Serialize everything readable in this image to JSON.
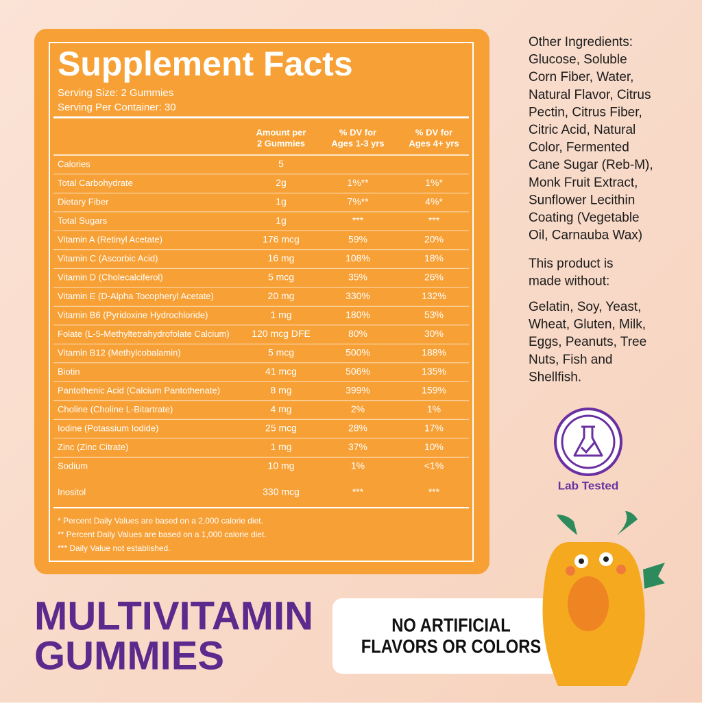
{
  "facts": {
    "title": "Supplement Facts",
    "serving_size": "Serving Size: 2 Gummies",
    "servings_per_container": "Serving Per Container: 30",
    "header": [
      [
        "Amount per",
        "2 Gummies"
      ],
      [
        "% DV for",
        "Ages 1-3 yrs"
      ],
      [
        "% DV for",
        "Ages 4+ yrs"
      ]
    ],
    "rows": [
      [
        "Calories",
        "5",
        "",
        ""
      ],
      [
        "Total Carbohydrate",
        "2g",
        "1%**",
        "1%*"
      ],
      [
        "Dietary Fiber",
        "1g",
        "7%**",
        "4%*"
      ],
      [
        "Total Sugars",
        "1g",
        "***",
        "***"
      ],
      [
        "Vitamin A (Retinyl Acetate)",
        "176 mcg",
        "59%",
        "20%"
      ],
      [
        "Vitamin C (Ascorbic Acid)",
        "16 mg",
        "108%",
        "18%"
      ],
      [
        "Vitamin D (Cholecalciferol)",
        "5 mcg",
        "35%",
        "26%"
      ],
      [
        "Vitamin E (D-Alpha Tocopheryl Acetate)",
        "20 mg",
        "330%",
        "132%"
      ],
      [
        "Vitamin B6 (Pyridoxine Hydrochloride)",
        "1 mg",
        "180%",
        "53%"
      ],
      [
        "Folate (L-5-Methyltetrahydrofolate Calcium)",
        "120 mcg DFE",
        "80%",
        "30%"
      ],
      [
        "Vitamin B12 (Methylcobalamin)",
        "5 mcg",
        "500%",
        "188%"
      ],
      [
        "Biotin",
        "41 mcg",
        "506%",
        "135%"
      ],
      [
        "Pantothenic Acid (Calcium Pantothenate)",
        "8 mg",
        "399%",
        "159%"
      ],
      [
        "Choline (Choline L-Bitartrate)",
        "4 mg",
        "2%",
        "1%"
      ],
      [
        "Iodine (Potassium Iodide)",
        "25 mcg",
        "28%",
        "17%"
      ],
      [
        "Zinc (Zinc Citrate)",
        "1 mg",
        "37%",
        "10%"
      ],
      [
        "Sodium",
        "10 mg",
        "1%",
        "<1%"
      ],
      [
        "Inositol",
        "330 mcg",
        "***",
        "***"
      ]
    ],
    "footnotes": [
      "*  Percent Daily Values are based on a 2,000 calorie diet.",
      "**  Percent Daily Values are based on a 1,000 calorie diet.",
      "***  Daily Value not established."
    ]
  },
  "other_ingredients": [
    "Other Ingredients:",
    "Glucose,  Soluble",
    "Corn Fiber, Water,",
    "Natural Flavor, Citrus",
    "Pectin, Citrus Fiber,",
    "Citric Acid, Natural",
    "Color, Fermented",
    "Cane Sugar (Reb-M),",
    "Monk Fruit Extract,",
    "Sunflower Lecithin",
    "Coating (Vegetable",
    "Oil, Carnauba Wax)"
  ],
  "made_without_title": [
    "This product is",
    "made without:"
  ],
  "made_without": [
    "Gelatin, Soy, Yeast,",
    "Wheat, Gluten, Milk,",
    "Eggs, Peanuts, Tree",
    "Nuts, Fish and",
    "Shellfish."
  ],
  "badge": "Lab Tested",
  "product": [
    "MULTIVITAMIN",
    "GUMMIES"
  ],
  "banner": [
    "NO ARTIFICIAL",
    "FLAVORS OR COLORS"
  ]
}
